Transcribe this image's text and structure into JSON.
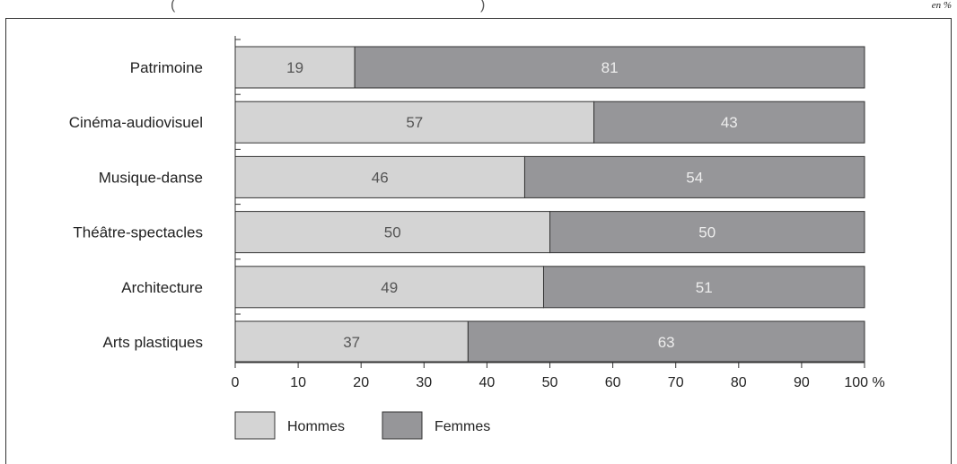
{
  "top_caption": "(",
  "top_caption_right": ")",
  "unit_note": "en %",
  "chart_data": {
    "type": "bar",
    "orientation": "horizontal",
    "stacked": true,
    "categories": [
      "Patrimoine",
      "Cinéma-audiovisuel",
      "Musique-danse",
      "Théâtre-spectacles",
      "Architecture",
      "Arts plastiques"
    ],
    "series": [
      {
        "name": "Hommes",
        "values": [
          19,
          57,
          46,
          50,
          49,
          37
        ],
        "color": "#d4d4d4"
      },
      {
        "name": "Femmes",
        "values": [
          81,
          43,
          54,
          50,
          51,
          63
        ],
        "color": "#969699"
      }
    ],
    "xlim": [
      0,
      100
    ],
    "xticks": [
      0,
      10,
      20,
      30,
      40,
      50,
      60,
      70,
      80,
      90,
      100
    ],
    "x_unit_suffix": " %",
    "grid": false,
    "legend_position": "bottom-left"
  }
}
